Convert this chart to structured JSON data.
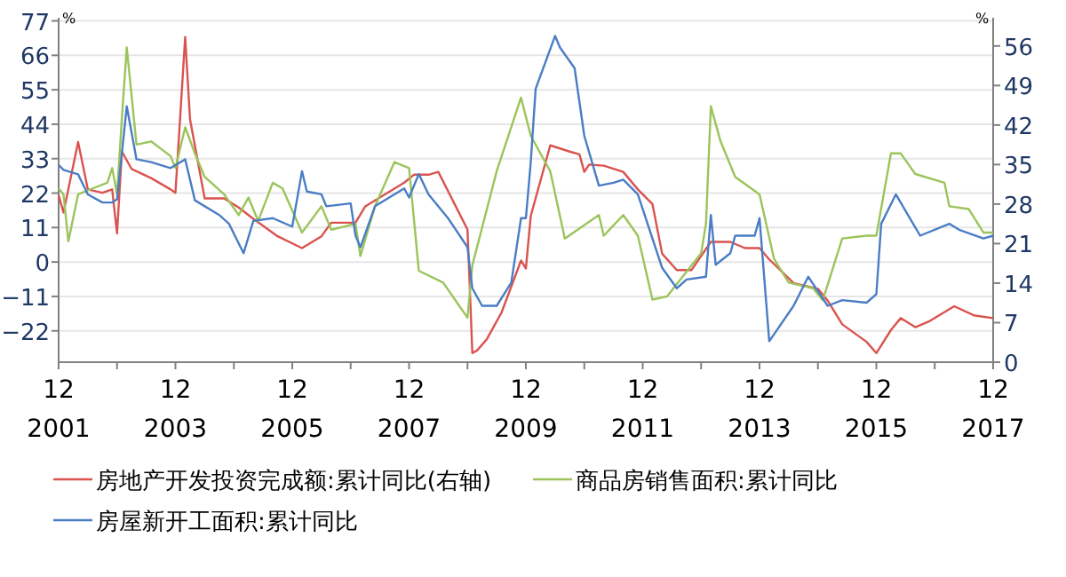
{
  "chart_data": {
    "type": "line",
    "ylabel": "%",
    "y2label": "%",
    "legend": "bottom",
    "grid": "y",
    "line_style": "solid",
    "marker": "none",
    "xlim": [
      "2001-12",
      "2017-12"
    ],
    "ylim": [
      -32,
      78
    ],
    "y2lim": [
      0,
      61
    ],
    "xticks": [
      {
        "value": "2001-12",
        "label": "12\n2001"
      },
      {
        "value": "2002-12",
        "label": null
      },
      {
        "value": "2003-12",
        "label": "12\n2003"
      },
      {
        "value": "2004-12",
        "label": null
      },
      {
        "value": "2005-12",
        "label": "12\n2005"
      },
      {
        "value": "2006-12",
        "label": null
      },
      {
        "value": "2007-12",
        "label": "12\n2007"
      },
      {
        "value": "2008-12",
        "label": null
      },
      {
        "value": "2009-12",
        "label": "12\n2009"
      },
      {
        "value": "2010-12",
        "label": null
      },
      {
        "value": "2011-12",
        "label": "12\n2011"
      },
      {
        "value": "2012-12",
        "label": null
      },
      {
        "value": "2013-12",
        "label": "12\n2013"
      },
      {
        "value": "2014-12",
        "label": null
      },
      {
        "value": "2015-12",
        "label": "12\n2015"
      },
      {
        "value": "2016-12",
        "label": null
      },
      {
        "value": "2017-12",
        "label": "12\n2017"
      }
    ],
    "yticks": [
      -22,
      -11,
      0,
      11,
      22,
      33,
      44,
      55,
      66,
      77
    ],
    "y2ticks": [
      0,
      7,
      14,
      21,
      28,
      35,
      42,
      49,
      56
    ],
    "series": [
      {
        "name": "房地产开发投资完成额:累计同比(右轴)",
        "color": "#d9534f",
        "axis": "y2",
        "x": [
          "2001-12",
          "2002-01",
          "2002-04",
          "2002-06",
          "2002-09",
          "2002-11",
          "2002-12",
          "2003-01",
          "2003-03",
          "2003-07",
          "2003-11",
          "2003-12",
          "2004-02",
          "2004-03",
          "2004-06",
          "2004-10",
          "2005-01",
          "2005-04",
          "2005-09",
          "2006-02",
          "2006-06",
          "2006-08",
          "2007-01",
          "2007-03",
          "2007-11",
          "2008-01",
          "2008-04",
          "2008-06",
          "2008-12",
          "2009-01",
          "2009-02",
          "2009-04",
          "2009-07",
          "2009-11",
          "2009-12",
          "2010-01",
          "2010-05",
          "2010-09",
          "2010-11",
          "2010-12",
          "2011-01",
          "2011-04",
          "2011-08",
          "2011-11",
          "2012-02",
          "2012-04",
          "2012-07",
          "2012-10",
          "2013-02",
          "2013-06",
          "2013-09",
          "2013-12",
          "2014-02",
          "2014-07",
          "2014-12",
          "2015-02",
          "2015-05",
          "2015-10",
          "2015-12",
          "2016-03",
          "2016-05",
          "2016-08",
          "2016-11",
          "2017-04",
          "2017-08",
          "2017-12"
        ],
        "values": [
          29.6,
          26.5,
          39,
          30.6,
          30,
          30.6,
          22.8,
          37.3,
          34.2,
          32.6,
          30.6,
          30,
          57.6,
          43,
          29,
          29,
          27.4,
          25.4,
          22.3,
          20.2,
          22.3,
          24.7,
          24.7,
          27.6,
          31.8,
          33.2,
          33.2,
          33.7,
          23.5,
          1.6,
          2.1,
          4.1,
          8.8,
          18,
          16.6,
          25.9,
          38.4,
          37.3,
          36.8,
          33.7,
          35,
          34.8,
          33.7,
          30.6,
          28,
          19.2,
          16.3,
          16.3,
          21.3,
          21.3,
          20.2,
          20.2,
          18.2,
          14,
          13,
          10.9,
          6.7,
          3.6,
          1.6,
          5.7,
          7.8,
          6.2,
          7.3,
          9.9,
          8.3,
          7.8
        ]
      },
      {
        "name": "商品房销售面积:累计同比",
        "color": "#9bc45a",
        "x": [
          "2001-12",
          "2002-01",
          "2002-02",
          "2002-04",
          "2002-07",
          "2002-10",
          "2002-11",
          "2002-12",
          "2003-01",
          "2003-02",
          "2003-04",
          "2003-07",
          "2003-11",
          "2003-12",
          "2004-02",
          "2004-04",
          "2004-06",
          "2004-10",
          "2005-01",
          "2005-03",
          "2005-05",
          "2005-08",
          "2005-10",
          "2006-02",
          "2006-06",
          "2006-08",
          "2007-01",
          "2007-02",
          "2007-05",
          "2007-09",
          "2007-12",
          "2008-02",
          "2008-07",
          "2008-12",
          "2009-01",
          "2009-06",
          "2009-11",
          "2010-01",
          "2010-05",
          "2010-08",
          "2011-03",
          "2011-04",
          "2011-08",
          "2011-11",
          "2012-02",
          "2012-05",
          "2012-12",
          "2013-01",
          "2013-02",
          "2013-04",
          "2013-07",
          "2013-12",
          "2014-03",
          "2014-06",
          "2014-11",
          "2015-01",
          "2015-05",
          "2015-10",
          "2015-12",
          "2016-03",
          "2016-05",
          "2016-08",
          "2017-02",
          "2017-03",
          "2017-07",
          "2017-10",
          "2017-12"
        ],
        "values": [
          23.5,
          21.6,
          6.6,
          21.6,
          23.5,
          25.3,
          30,
          21.6,
          46,
          68.5,
          37.5,
          38.5,
          33.8,
          30,
          43,
          34.7,
          27.2,
          21.6,
          15,
          20.6,
          13.1,
          25.3,
          23.5,
          9.4,
          17.8,
          10.3,
          12.2,
          1.9,
          17.8,
          31.9,
          30,
          -2.8,
          -6.6,
          -17.8,
          -1.1,
          29,
          52.5,
          40.3,
          29,
          7.5,
          15,
          8.4,
          15,
          8.4,
          -12,
          -11,
          2.8,
          12.2,
          49.7,
          38.5,
          27.2,
          21.6,
          0.9,
          -6.6,
          -8.4,
          -12.2,
          7.5,
          8.4,
          8.4,
          34.7,
          34.7,
          28.1,
          25.3,
          17.8,
          16.9,
          9.4,
          9.4
        ]
      },
      {
        "name": "房屋新开工面积:累计同比",
        "color": "#4a7dc4",
        "x": [
          "2001-12",
          "2002-01",
          "2002-04",
          "2002-06",
          "2002-09",
          "2002-11",
          "2002-12",
          "2003-02",
          "2003-04",
          "2003-07",
          "2003-11",
          "2004-02",
          "2004-04",
          "2004-09",
          "2004-11",
          "2005-02",
          "2005-04",
          "2005-08",
          "2005-12",
          "2006-02",
          "2006-03",
          "2006-06",
          "2006-07",
          "2006-12",
          "2007-01",
          "2007-02",
          "2007-05",
          "2007-11",
          "2007-12",
          "2008-02",
          "2008-04",
          "2008-08",
          "2008-12",
          "2009-01",
          "2009-03",
          "2009-06",
          "2009-09",
          "2009-11",
          "2009-12",
          "2010-01",
          "2010-02",
          "2010-06",
          "2010-07",
          "2010-10",
          "2010-12",
          "2011-03",
          "2011-06",
          "2011-08",
          "2011-11",
          "2012-04",
          "2012-07",
          "2012-09",
          "2013-01",
          "2013-02",
          "2013-03",
          "2013-06",
          "2013-07",
          "2013-11",
          "2013-12",
          "2014-02",
          "2014-07",
          "2014-10",
          "2015-02",
          "2015-05",
          "2015-10",
          "2015-12",
          "2016-01",
          "2016-04",
          "2016-09",
          "2017-03",
          "2017-05",
          "2017-10",
          "2017-12"
        ],
        "values": [
          31,
          29.4,
          28,
          21.6,
          19,
          19,
          20,
          49.7,
          32.8,
          31.9,
          30,
          32.8,
          19.7,
          15,
          12.2,
          2.8,
          13.1,
          14,
          11.3,
          29,
          22.5,
          21.6,
          17.8,
          18.7,
          8.4,
          4.7,
          17.8,
          23.5,
          20.6,
          28.1,
          21.6,
          14,
          4.7,
          -8.4,
          -14,
          -14,
          -6.6,
          14,
          14,
          31.9,
          55.3,
          72.2,
          68.5,
          61.9,
          40.3,
          24.4,
          25.3,
          26.3,
          21.6,
          -1.9,
          -8.4,
          -5.6,
          -4.7,
          15,
          -0.9,
          2.8,
          8.4,
          8.4,
          14,
          -25.3,
          -14,
          -4.7,
          -14,
          -12.2,
          -13,
          -10.3,
          12.2,
          21.6,
          8.4,
          12.2,
          10.3,
          7.5,
          8.4
        ]
      }
    ]
  }
}
